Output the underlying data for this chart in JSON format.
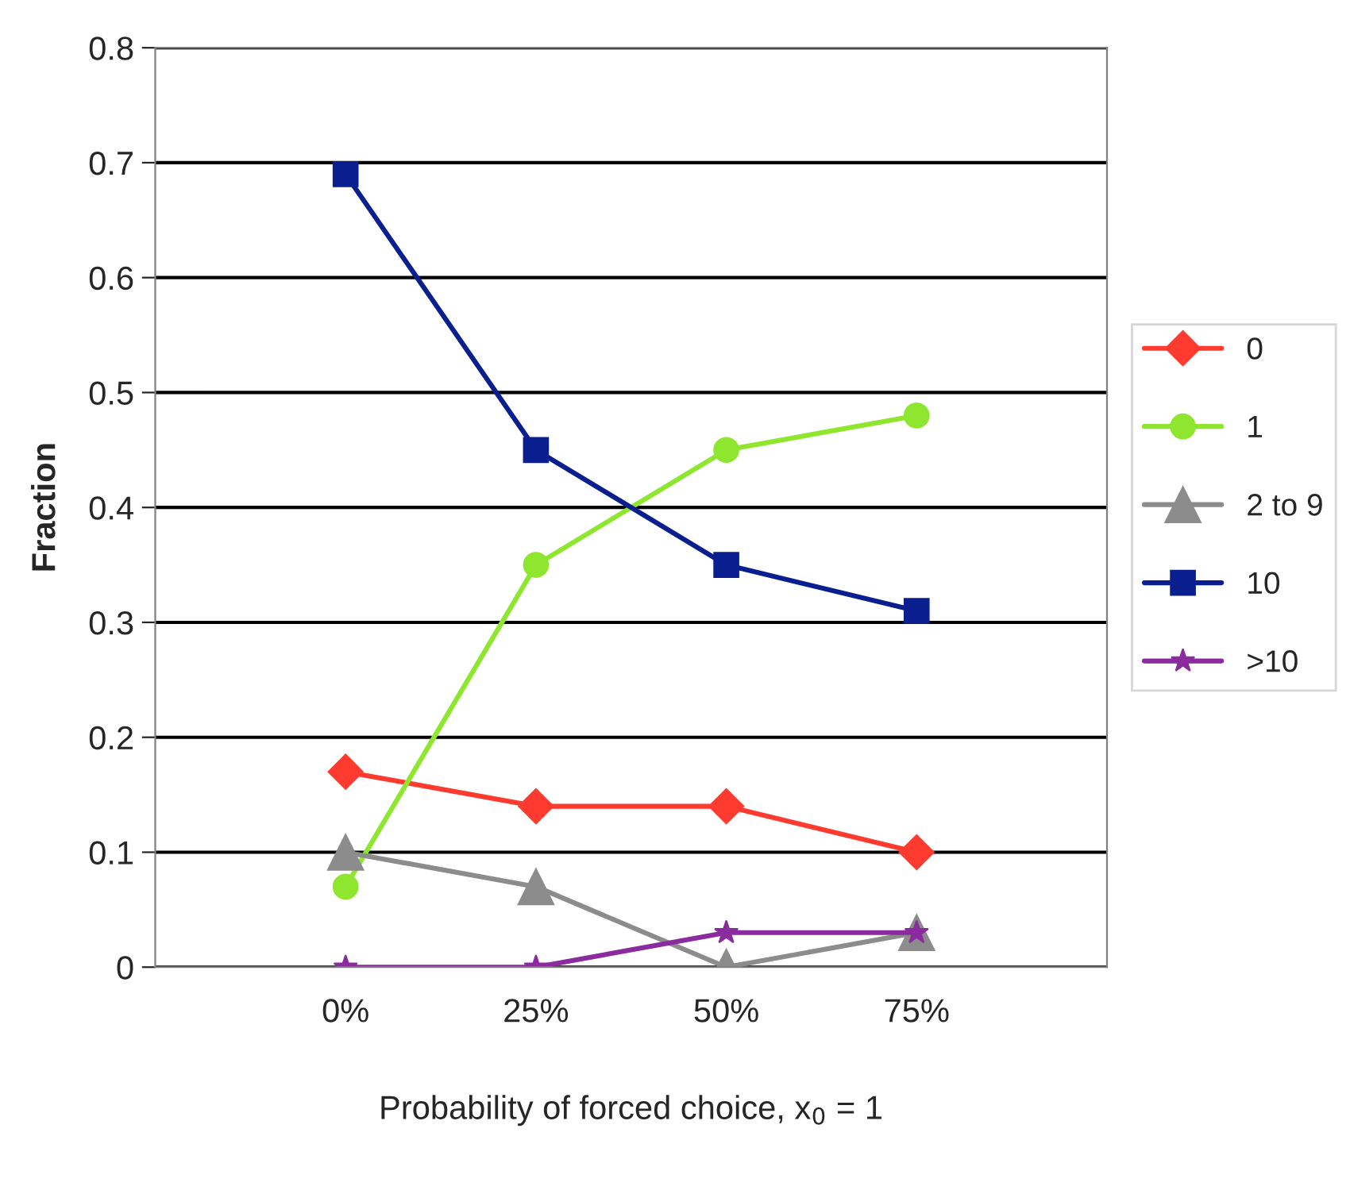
{
  "chart_data": {
    "type": "line",
    "xlabel": "Probability of forced choice, x$_{0}$ = 1",
    "ylabel": "Fraction",
    "categories": [
      "0%",
      "25%",
      "50%",
      "75%"
    ],
    "series": [
      {
        "name": "0",
        "color": "#ff3b2f",
        "marker": "diamond",
        "values": [
          0.17,
          0.14,
          0.14,
          0.1
        ]
      },
      {
        "name": "1",
        "color": "#8ee62e",
        "marker": "circle",
        "values": [
          0.07,
          0.35,
          0.45,
          0.48
        ]
      },
      {
        "name": "2 to 9",
        "color": "#8c8c8c",
        "marker": "triangle",
        "values": [
          0.1,
          0.07,
          0.0,
          0.03
        ]
      },
      {
        "name": "10",
        "color": "#0a1f8f",
        "marker": "square",
        "values": [
          0.69,
          0.45,
          0.35,
          0.31
        ]
      },
      {
        "name": ">10",
        "color": "#8a2b9e",
        "marker": "star",
        "values": [
          0.0,
          0.0,
          0.03,
          0.03
        ]
      }
    ],
    "ylim": [
      0,
      0.8
    ],
    "yticks": [
      0,
      0.1,
      0.2,
      0.3,
      0.4,
      0.5,
      0.6,
      0.7,
      0.8
    ],
    "grid": "y",
    "legend": "right",
    "line_style": "solid"
  }
}
